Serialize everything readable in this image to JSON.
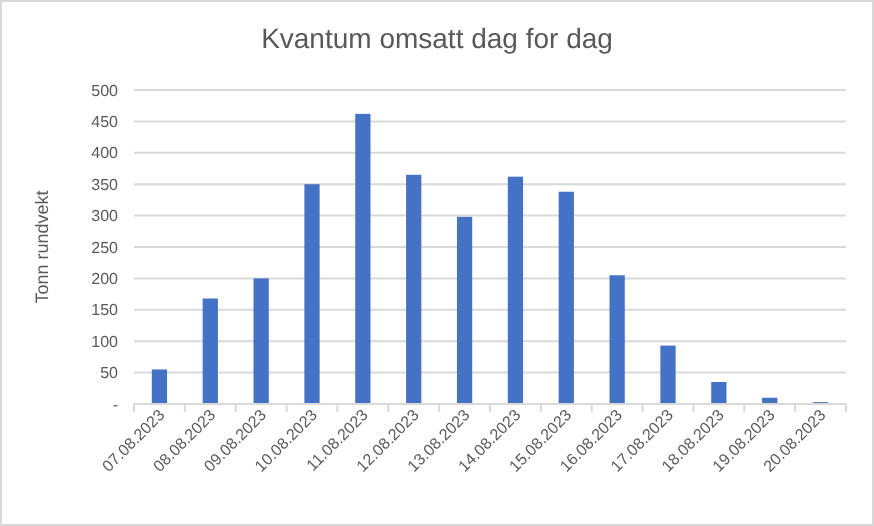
{
  "chart_data": {
    "type": "bar",
    "title": "Kvantum omsatt dag for dag",
    "ylabel": "Tonn rundvekt",
    "categories": [
      "07.08.2023",
      "08.08.2023",
      "09.08.2023",
      "10.08.2023",
      "11.08.2023",
      "12.08.2023",
      "13.08.2023",
      "14.08.2023",
      "15.08.2023",
      "16.08.2023",
      "17.08.2023",
      "18.08.2023",
      "19.08.2023",
      "20.08.2023"
    ],
    "values": [
      55,
      168,
      200,
      350,
      462,
      365,
      298,
      362,
      338,
      205,
      93,
      35,
      10,
      3
    ],
    "color": "#4472c4",
    "ylim": [
      0,
      500
    ],
    "yticks": [
      {
        "value": 0,
        "label": "-"
      },
      50,
      100,
      150,
      200,
      250,
      300,
      350,
      400,
      450,
      500
    ],
    "grid": "y"
  }
}
